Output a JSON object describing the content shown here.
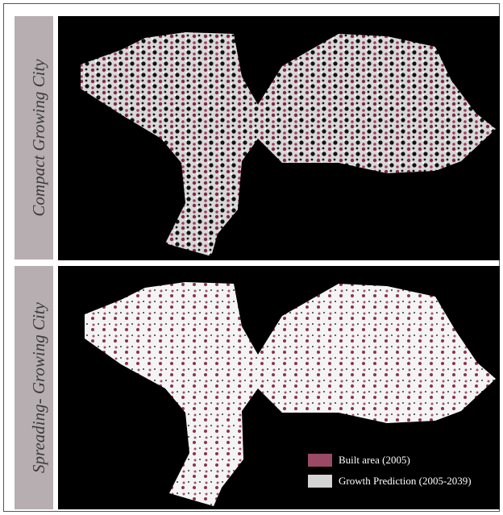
{
  "panels": [
    {
      "label": "Compact Growing City"
    },
    {
      "label": "Spreading- Growing City"
    }
  ],
  "legend": [
    {
      "label": "Built area (2005)"
    },
    {
      "label": "Growth Prediction (2005-2039)"
    }
  ]
}
